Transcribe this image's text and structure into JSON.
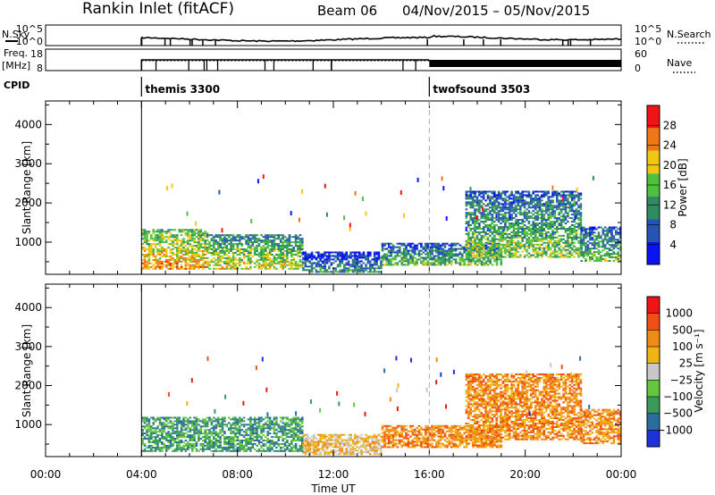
{
  "header": {
    "title": "Rankin Inlet (fitACF)",
    "beam": "Beam 06",
    "date_range": "04/Nov/2015 – 05/Nov/2015"
  },
  "summary_panels": {
    "noise": {
      "left_label": "N.Sky",
      "right_label": "N.Search",
      "left_ticks": [
        "10^5",
        "10^0"
      ],
      "right_ticks": [
        "10^5",
        "10^0"
      ]
    },
    "freq": {
      "left_label_1": "Freq.",
      "left_label_2": "[MHz]",
      "right_label": "Nave",
      "left_ticks": [
        "18",
        "8"
      ],
      "right_ticks": [
        "60",
        "0"
      ]
    },
    "cpid": {
      "label": "CPID",
      "segments": [
        {
          "name": "themis 3300",
          "start_hour": 4
        },
        {
          "name": "twofsound 3503",
          "start_hour": 16
        }
      ]
    }
  },
  "chart_data": [
    {
      "type": "heatmap",
      "parameter": "Power",
      "ylabel": "Slant Range [km]",
      "ylim": [
        180,
        4600
      ],
      "yticks": [
        "1000",
        "2000",
        "3000",
        "4000"
      ],
      "colorbar_label": "Power [dB]",
      "colorbar_ticks": [
        "4",
        "8",
        "12",
        "16",
        "20",
        "24",
        "28"
      ],
      "colorbar_range": [
        0,
        32
      ],
      "colors": [
        "#0a14f0",
        "#2454b4",
        "#2e8c60",
        "#4ec03c",
        "#f0c814",
        "#f07814",
        "#f01414"
      ],
      "echo_regions": [
        {
          "start_hour": 4.0,
          "end_hour": 6.7,
          "range_km": [
            300,
            1300
          ],
          "level": 0.8
        },
        {
          "start_hour": 6.7,
          "end_hour": 10.7,
          "range_km": [
            300,
            1200
          ],
          "level": 0.65
        },
        {
          "start_hour": 10.7,
          "end_hour": 14.0,
          "range_km": [
            220,
            750
          ],
          "level": 0.35
        },
        {
          "start_hour": 14.0,
          "end_hour": 19.0,
          "range_km": [
            400,
            950
          ],
          "level": 0.5
        },
        {
          "start_hour": 17.5,
          "end_hour": 22.3,
          "range_km": [
            600,
            2300
          ],
          "level": 0.55
        },
        {
          "start_hour": 22.3,
          "end_hour": 24.0,
          "range_km": [
            500,
            1400
          ],
          "level": 0.5
        }
      ]
    },
    {
      "type": "heatmap",
      "parameter": "Velocity",
      "ylabel": "Slant Range [km]",
      "ylim": [
        180,
        4600
      ],
      "yticks": [
        "1000",
        "2000",
        "3000",
        "4000"
      ],
      "colorbar_label": "Velocity [m s⁻¹]",
      "colorbar_ticks": [
        "1000",
        "500",
        "100",
        "25",
        "−25",
        "−100",
        "−500",
        "−1000"
      ],
      "colors": [
        "#1e32dc",
        "#2a6ea0",
        "#3a9a5a",
        "#64c83c",
        "#c8c8c8",
        "#f0b414",
        "#f08c14",
        "#f05014",
        "#f01414"
      ],
      "echo_regions": [
        {
          "start_hour": 4.0,
          "end_hour": 10.7,
          "range_km": [
            300,
            1200
          ],
          "class_index": 2
        },
        {
          "start_hour": 10.7,
          "end_hour": 14.0,
          "range_km": [
            220,
            750
          ],
          "class_index": 5
        },
        {
          "start_hour": 14.0,
          "end_hour": 19.0,
          "range_km": [
            400,
            950
          ],
          "class_index": 6
        },
        {
          "start_hour": 17.5,
          "end_hour": 22.3,
          "range_km": [
            600,
            2300
          ],
          "class_index": 6
        },
        {
          "start_hour": 22.3,
          "end_hour": 24.0,
          "range_km": [
            500,
            1400
          ],
          "class_index": 6
        }
      ]
    }
  ],
  "x_axis": {
    "label": "Time UT",
    "ticks": [
      "00:00",
      "04:00",
      "08:00",
      "12:00",
      "16:00",
      "20:00",
      "00:00"
    ]
  }
}
